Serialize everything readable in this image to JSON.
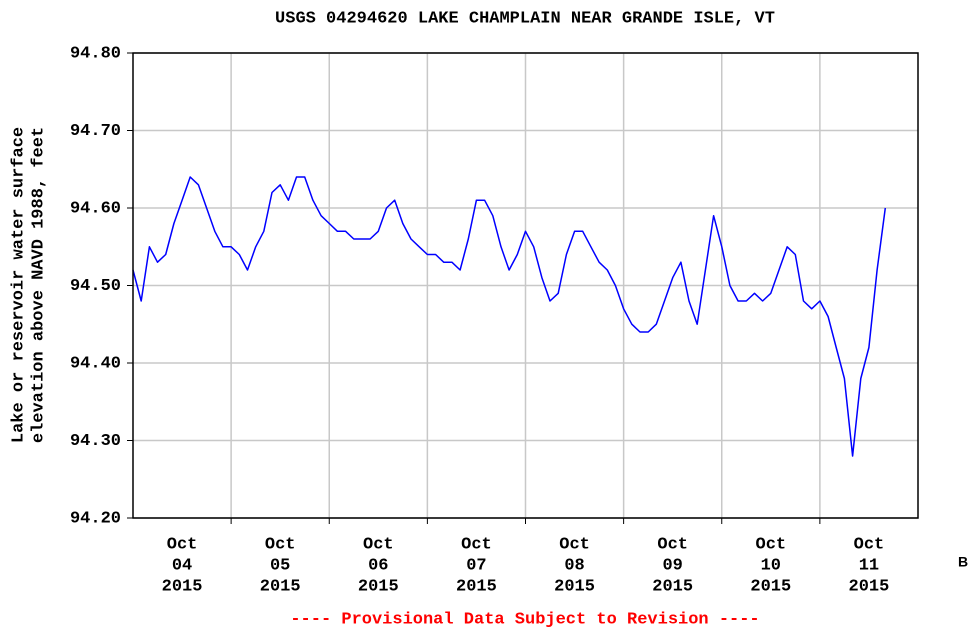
{
  "chart_data": {
    "type": "line",
    "title": "USGS 04294620 LAKE CHAMPLAIN NEAR GRANDE ISLE, VT",
    "y_label": [
      "Lake or reservoir water surface",
      "elevation above NAVD 1988, feet"
    ],
    "footer": "---- Provisional Data Subject to Revision ----",
    "corner_label": "B",
    "xlim": [
      "2015-10-04T00:00",
      "2015-10-12T00:00"
    ],
    "xticks": [
      {
        "value": "2015-10-04T12:00",
        "label": [
          "Oct",
          "04",
          "2015"
        ]
      },
      {
        "value": "2015-10-05T12:00",
        "label": [
          "Oct",
          "05",
          "2015"
        ]
      },
      {
        "value": "2015-10-06T12:00",
        "label": [
          "Oct",
          "06",
          "2015"
        ]
      },
      {
        "value": "2015-10-07T12:00",
        "label": [
          "Oct",
          "07",
          "2015"
        ]
      },
      {
        "value": "2015-10-08T12:00",
        "label": [
          "Oct",
          "08",
          "2015"
        ]
      },
      {
        "value": "2015-10-09T12:00",
        "label": [
          "Oct",
          "09",
          "2015"
        ]
      },
      {
        "value": "2015-10-10T12:00",
        "label": [
          "Oct",
          "10",
          "2015"
        ]
      },
      {
        "value": "2015-10-11T12:00",
        "label": [
          "Oct",
          "11",
          "2015"
        ]
      }
    ],
    "xgrid": [
      "2015-10-05T00:00",
      "2015-10-06T00:00",
      "2015-10-07T00:00",
      "2015-10-08T00:00",
      "2015-10-09T00:00",
      "2015-10-10T00:00",
      "2015-10-11T00:00"
    ],
    "ylim": [
      94.2,
      94.8
    ],
    "yticks": [
      {
        "value": 94.2,
        "label": "94.20"
      },
      {
        "value": 94.3,
        "label": "94.30"
      },
      {
        "value": 94.4,
        "label": "94.40"
      },
      {
        "value": 94.5,
        "label": "94.50"
      },
      {
        "value": 94.6,
        "label": "94.60"
      },
      {
        "value": 94.7,
        "label": "94.70"
      },
      {
        "value": 94.8,
        "label": "94.80"
      }
    ],
    "grid": true,
    "series": [
      {
        "color": "#0000ff",
        "x": [
          "2015-10-04T00:00",
          "2015-10-04T02:00",
          "2015-10-04T04:00",
          "2015-10-04T06:00",
          "2015-10-04T08:00",
          "2015-10-04T10:00",
          "2015-10-04T12:00",
          "2015-10-04T14:00",
          "2015-10-04T16:00",
          "2015-10-04T18:00",
          "2015-10-04T20:00",
          "2015-10-04T22:00",
          "2015-10-05T00:00",
          "2015-10-05T02:00",
          "2015-10-05T04:00",
          "2015-10-05T06:00",
          "2015-10-05T08:00",
          "2015-10-05T10:00",
          "2015-10-05T12:00",
          "2015-10-05T14:00",
          "2015-10-05T16:00",
          "2015-10-05T18:00",
          "2015-10-05T20:00",
          "2015-10-05T22:00",
          "2015-10-06T00:00",
          "2015-10-06T02:00",
          "2015-10-06T04:00",
          "2015-10-06T06:00",
          "2015-10-06T08:00",
          "2015-10-06T10:00",
          "2015-10-06T12:00",
          "2015-10-06T14:00",
          "2015-10-06T16:00",
          "2015-10-06T18:00",
          "2015-10-06T20:00",
          "2015-10-06T22:00",
          "2015-10-07T00:00",
          "2015-10-07T02:00",
          "2015-10-07T04:00",
          "2015-10-07T06:00",
          "2015-10-07T08:00",
          "2015-10-07T10:00",
          "2015-10-07T12:00",
          "2015-10-07T14:00",
          "2015-10-07T16:00",
          "2015-10-07T18:00",
          "2015-10-07T20:00",
          "2015-10-07T22:00",
          "2015-10-08T00:00",
          "2015-10-08T02:00",
          "2015-10-08T04:00",
          "2015-10-08T06:00",
          "2015-10-08T08:00",
          "2015-10-08T10:00",
          "2015-10-08T12:00",
          "2015-10-08T14:00",
          "2015-10-08T16:00",
          "2015-10-08T18:00",
          "2015-10-08T20:00",
          "2015-10-08T22:00",
          "2015-10-09T00:00",
          "2015-10-09T02:00",
          "2015-10-09T04:00",
          "2015-10-09T06:00",
          "2015-10-09T08:00",
          "2015-10-09T10:00",
          "2015-10-09T12:00",
          "2015-10-09T14:00",
          "2015-10-09T16:00",
          "2015-10-09T18:00",
          "2015-10-09T20:00",
          "2015-10-09T22:00",
          "2015-10-10T00:00",
          "2015-10-10T02:00",
          "2015-10-10T04:00",
          "2015-10-10T06:00",
          "2015-10-10T08:00",
          "2015-10-10T10:00",
          "2015-10-10T12:00",
          "2015-10-10T14:00",
          "2015-10-10T16:00",
          "2015-10-10T18:00",
          "2015-10-10T20:00",
          "2015-10-10T22:00",
          "2015-10-11T00:00",
          "2015-10-11T02:00",
          "2015-10-11T04:00",
          "2015-10-11T06:00",
          "2015-10-11T08:00",
          "2015-10-11T10:00",
          "2015-10-11T12:00",
          "2015-10-11T14:00",
          "2015-10-11T16:00"
        ],
        "values": [
          94.52,
          94.48,
          94.55,
          94.53,
          94.54,
          94.58,
          94.61,
          94.64,
          94.63,
          94.6,
          94.57,
          94.55,
          94.55,
          94.54,
          94.52,
          94.55,
          94.57,
          94.62,
          94.63,
          94.61,
          94.64,
          94.64,
          94.61,
          94.59,
          94.58,
          94.57,
          94.57,
          94.56,
          94.56,
          94.56,
          94.57,
          94.6,
          94.61,
          94.58,
          94.56,
          94.55,
          94.54,
          94.54,
          94.53,
          94.53,
          94.52,
          94.56,
          94.61,
          94.61,
          94.59,
          94.55,
          94.52,
          94.54,
          94.57,
          94.55,
          94.51,
          94.48,
          94.49,
          94.54,
          94.57,
          94.57,
          94.55,
          94.53,
          94.52,
          94.5,
          94.47,
          94.45,
          94.44,
          94.44,
          94.45,
          94.48,
          94.51,
          94.53,
          94.48,
          94.45,
          94.52,
          94.59,
          94.55,
          94.5,
          94.48,
          94.48,
          94.49,
          94.48,
          94.49,
          94.52,
          94.55,
          94.54,
          94.48,
          94.47,
          94.48,
          94.46,
          94.42,
          94.38,
          94.28,
          94.38,
          94.42,
          94.52,
          94.6
        ]
      }
    ]
  }
}
